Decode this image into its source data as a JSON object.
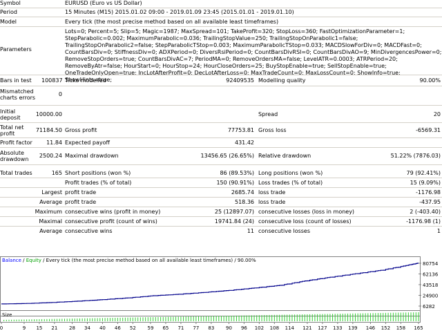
{
  "report": {
    "symbol": {
      "label": "Symbol",
      "value": "EURUSD (Euro vs US Dollar)"
    },
    "period": {
      "label": "Period",
      "value": "15 Minutes (M15) 2015.01.02 09:00 - 2019.01.09 23:45 (2015.01.01 - 2019.01.10)"
    },
    "model": {
      "label": "Model",
      "value": "Every tick (the most precise method based on all available least timeframes)"
    },
    "parameters": {
      "label": "Parameters",
      "value": "Lots=0; Percent=5; Slip=5; Magic=1987; MaxSpread=101; TakeProfit=320; StopLoss=360; FastOptimizationParameter=1; StepParabolic=0.002; MaximumParabolic=0.036; TrailingStopValue=250; TrailingStopOnParabolic1=false; TrailingStopOnParabolic2=false; StepParabolicTStop=0.003; MaximumParabolicTStop=0.033; MACDSlowForDiv=0; MACDFast=0; CountBarsDiv=0; StiffnessDiv=0; ADXPeriod=0; DiversRsiPeriod=0; CountBarsDivRSI=0; CountBarsDivAO=9; MinDivergencesPower=0; RemoveStopOrders=true; CountBarsDivAC=7; PeriodMA=0; RemoveOrdersMA=false; LevelATR=0.0003; ATRPeriod=20; RemoveByAtr=false; HourStart=0; HourStop=24; HourCloseOrders=25; BuyStopEnable=true; SellStopEnable=true; OneTradeOnlyOpen=true; IncLotAfterProfit=0; DecLotAfterLoss=0; MaxTradeCount=0; MaxLossCount=0; ShowInfo=true; ShowHints=true;"
    },
    "bars_in_test": {
      "label": "Bars in test",
      "value": "100837"
    },
    "ticks_modelled": {
      "label": "Ticks modelled",
      "value": "92409535"
    },
    "modelling_quality": {
      "label": "Modelling quality",
      "value": "90.00%"
    },
    "mismatched": {
      "label1": "Mismatched",
      "label2": "charts errors",
      "value": "0"
    },
    "initial_deposit": {
      "label1": "Initial",
      "label2": "deposit",
      "value": "10000.00"
    },
    "spread": {
      "label": "Spread",
      "value": "20"
    },
    "total_net_profit": {
      "label1": "Total net",
      "label2": "profit",
      "value": "71184.50"
    },
    "gross_profit": {
      "label": "Gross profit",
      "value": "77753.81"
    },
    "gross_loss": {
      "label": "Gross loss",
      "value": "-6569.31"
    },
    "profit_factor": {
      "label": "Profit factor",
      "value": "11.84"
    },
    "expected_payoff": {
      "label": "Expected payoff",
      "value": "431.42"
    },
    "absolute_drawdown": {
      "label1": "Absolute",
      "label2": "drawdown",
      "value": "2500.24"
    },
    "maximal_drawdown": {
      "label": "Maximal drawdown",
      "value": "13456.65 (26.65%)"
    },
    "relative_drawdown": {
      "label": "Relative drawdown",
      "value": "51.22% (7876.03)"
    },
    "total_trades": {
      "label": "Total trades",
      "value": "165"
    },
    "short_positions": {
      "label": "Short positions (won %)",
      "value": "86 (89.53%)"
    },
    "long_positions": {
      "label": "Long positions (won %)",
      "value": "79 (92.41%)"
    },
    "profit_trades": {
      "label": "Profit trades (% of total)",
      "value": "150 (90.91%)"
    },
    "loss_trades": {
      "label": "Loss trades (% of total)",
      "value": "15 (9.09%)"
    },
    "largest": {
      "label": "Largest",
      "profit_label": "profit trade",
      "profit_value": "2685.74",
      "loss_label": "loss trade",
      "loss_value": "-1176.98"
    },
    "average": {
      "label": "Average",
      "profit_label": "profit trade",
      "profit_value": "518.36",
      "loss_label": "loss trade",
      "loss_value": "-437.95"
    },
    "maximum": {
      "label": "Maximum",
      "wins_label": "consecutive wins (profit in money)",
      "wins_value": "25 (12897.07)",
      "losses_label": "consecutive losses (loss in money)",
      "losses_value": "2 (-403.40)"
    },
    "maximal": {
      "label": "Maximal",
      "wins_label": "consecutive profit (count of wins)",
      "wins_value": "19741.84 (24)",
      "losses_label": "consecutive loss (count of losses)",
      "losses_value": "-1176.98 (1)"
    },
    "average_consec": {
      "label": "Average",
      "wins_label": "consecutive wins",
      "wins_value": "11",
      "losses_label": "consecutive losses",
      "losses_value": "1"
    }
  },
  "chart_header": {
    "balance": "Balance",
    "sep1": " / ",
    "equity": "Equity",
    "rest": " / Every tick (the most precise method based on all available least timeframes) / 90.00%"
  },
  "size_label": "Size",
  "colors": {
    "balance": "#0000ff",
    "equity": "#00a000",
    "line": "#00008b",
    "size": "#32cd32"
  },
  "chart_data": {
    "type": "line",
    "title": "Balance / Equity / Every tick (the most precise method based on all available least timeframes) / 90.00%",
    "xlabel": "",
    "ylabel": "",
    "y_ticks": [
      "80754",
      "62136",
      "43518",
      "24900",
      "6282"
    ],
    "x_ticks": [
      "0",
      "9",
      "15",
      "21",
      "28",
      "34",
      "40",
      "46",
      "52",
      "59",
      "65",
      "71",
      "77",
      "83",
      "90",
      "96",
      "102",
      "108",
      "114",
      "121",
      "127",
      "133",
      "139",
      "146",
      "152",
      "158",
      "165"
    ],
    "ylim": [
      6282,
      80754
    ],
    "xlim": [
      0,
      165
    ],
    "series": [
      {
        "name": "Balance",
        "x": [
          0,
          10,
          20,
          30,
          40,
          50,
          60,
          70,
          80,
          90,
          100,
          110,
          120,
          130,
          140,
          150,
          160,
          165
        ],
        "values": [
          10000,
          10800,
          12500,
          14800,
          17500,
          20500,
          24300,
          26800,
          30000,
          33500,
          37800,
          42300,
          50000,
          56500,
          62500,
          68500,
          76800,
          81185
        ]
      }
    ],
    "size_bars": {
      "count": 165,
      "note": "per-trade lot size bars, increasing over time"
    }
  }
}
